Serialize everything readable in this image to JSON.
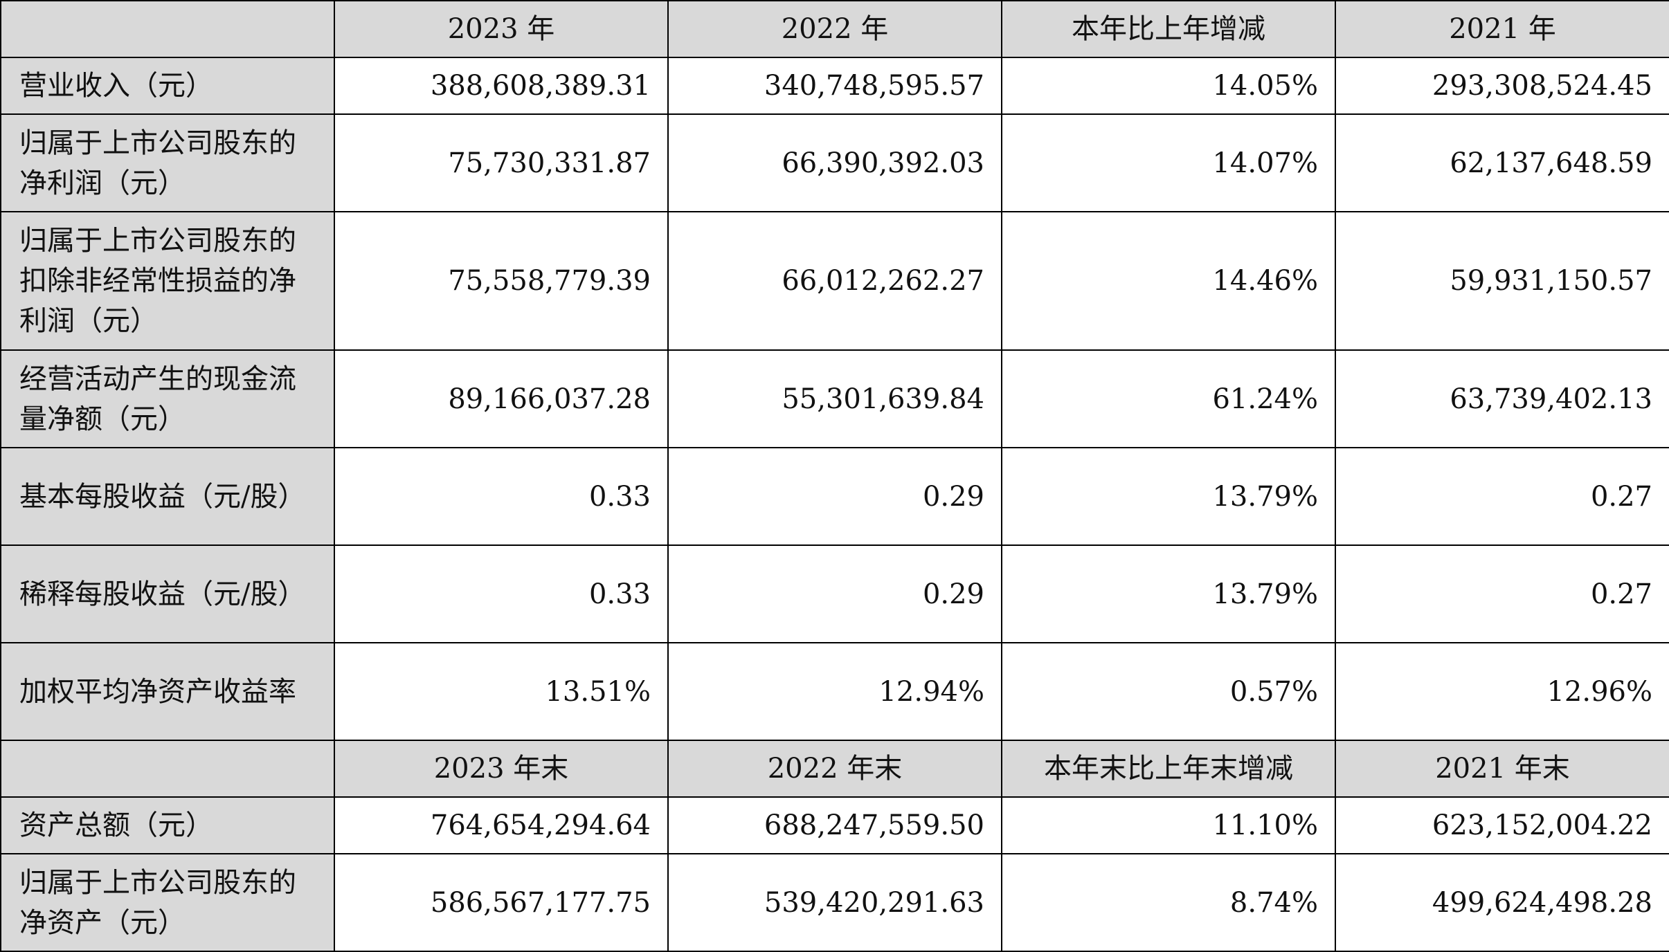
{
  "table": {
    "header_income": [
      "",
      "2023 年",
      "2022 年",
      "本年比上年增减",
      "2021 年"
    ],
    "header_balance": [
      "",
      "2023 年末",
      "2022 年末",
      "本年末比上年末增减",
      "2021 年末"
    ],
    "income_rows": [
      {
        "label": "营业收入（元）",
        "values": [
          "388,608,389.31",
          "340,748,595.57",
          "14.05%",
          "293,308,524.45"
        ]
      },
      {
        "label": "归属于上市公司股东的净利润（元）",
        "values": [
          "75,730,331.87",
          "66,390,392.03",
          "14.07%",
          "62,137,648.59"
        ]
      },
      {
        "label": "归属于上市公司股东的扣除非经常性损益的净利润（元）",
        "values": [
          "75,558,779.39",
          "66,012,262.27",
          "14.46%",
          "59,931,150.57"
        ]
      },
      {
        "label": "经营活动产生的现金流量净额（元）",
        "values": [
          "89,166,037.28",
          "55,301,639.84",
          "61.24%",
          "63,739,402.13"
        ]
      },
      {
        "label": "基本每股收益（元/股）",
        "values": [
          "0.33",
          "0.29",
          "13.79%",
          "0.27"
        ]
      },
      {
        "label": "稀释每股收益（元/股）",
        "values": [
          "0.33",
          "0.29",
          "13.79%",
          "0.27"
        ]
      },
      {
        "label": "加权平均净资产收益率",
        "values": [
          "13.51%",
          "12.94%",
          "0.57%",
          "12.96%"
        ]
      }
    ],
    "balance_rows": [
      {
        "label": "资产总额（元）",
        "values": [
          "764,654,294.64",
          "688,247,559.50",
          "11.10%",
          "623,152,004.22"
        ]
      },
      {
        "label": "归属于上市公司股东的净资产（元）",
        "values": [
          "586,567,177.75",
          "539,420,291.63",
          "8.74%",
          "499,624,498.28"
        ]
      }
    ]
  }
}
